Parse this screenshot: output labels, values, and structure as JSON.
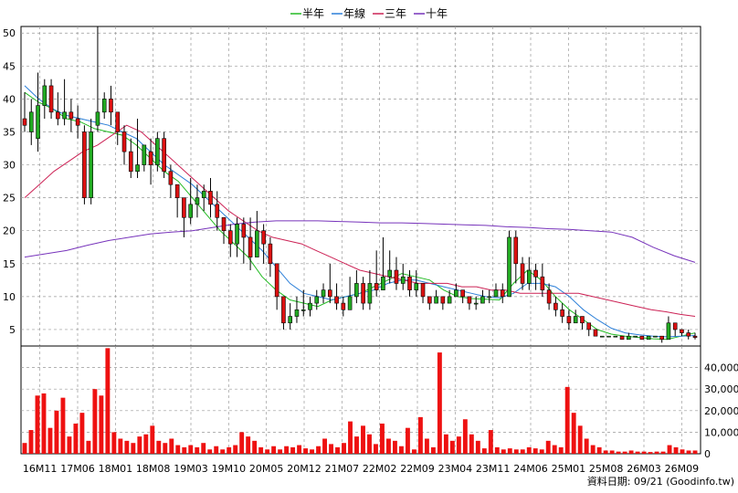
{
  "legend": {
    "items": [
      {
        "label": "半年",
        "color": "#22bb22"
      },
      {
        "label": "年線",
        "color": "#2b7fd8"
      },
      {
        "label": "三年",
        "color": "#cc2255"
      },
      {
        "label": "十年",
        "color": "#7733bb"
      }
    ]
  },
  "footer": {
    "text": "資料日期: 09/21  (Goodinfo.tw)"
  },
  "colors": {
    "up": "#22aa22",
    "down": "#dd1111",
    "volume": "#ee1111",
    "grid": "#999999"
  },
  "chart_data": [
    {
      "type": "candlestick",
      "title": "",
      "x_tick_labels": [
        "16M11",
        "17M06",
        "18M01",
        "18M08",
        "19M03",
        "19M10",
        "20M05",
        "20M12",
        "21M07",
        "22M02",
        "22M09",
        "23M04",
        "23M11",
        "24M06",
        "25M01",
        "25M08",
        "26M03",
        "26M09"
      ],
      "ylim": [
        2.5,
        51
      ],
      "y_ticks": [
        5,
        10,
        15,
        20,
        25,
        30,
        35,
        40,
        45,
        50
      ],
      "grid": true,
      "legend_position": "top-center",
      "series": [
        {
          "name": "半年",
          "values": [
            41,
            39.5,
            38.5,
            37,
            36.5,
            35.5,
            35,
            34.5,
            33,
            31,
            29,
            27.5,
            25,
            22.5,
            20,
            18,
            16,
            13,
            11,
            9.5,
            9,
            8.5,
            9.5,
            10,
            10.5,
            11.5,
            12.5,
            13.5,
            13,
            12.5,
            11,
            10,
            9.7,
            9.6,
            9.5,
            12,
            14,
            12.5,
            10,
            8,
            6.5,
            5,
            4.3,
            4,
            3.8,
            3.6,
            3.5,
            4,
            4.5
          ]
        },
        {
          "name": "年線",
          "values": [
            42,
            40,
            38.5,
            37.5,
            37,
            36.5,
            36,
            35,
            34,
            32,
            30,
            28.5,
            27,
            25,
            23,
            21,
            19,
            17,
            14.5,
            12,
            10.5,
            10,
            9.5,
            10,
            10.5,
            11,
            12,
            12.5,
            12.5,
            12,
            11.5,
            11,
            10.5,
            10,
            9.8,
            10.5,
            12,
            12,
            11.5,
            10,
            8,
            6.5,
            5.2,
            4.5,
            4.2,
            4,
            3.9,
            4,
            4.1
          ]
        },
        {
          "name": "三年",
          "values": [
            25,
            27,
            29,
            30.5,
            32,
            33,
            34.5,
            36,
            35,
            33,
            31,
            29,
            27,
            25,
            23,
            21.5,
            20,
            19,
            18.5,
            18,
            17,
            16,
            15,
            14,
            13.5,
            13,
            12.5,
            12,
            12,
            12,
            11.5,
            11.5,
            11,
            11,
            10.5,
            10.5,
            10.5,
            10.5,
            10.5,
            10,
            9.5,
            9,
            8.5,
            8,
            7.7,
            7.3,
            7
          ]
        },
        {
          "name": "十年",
          "values": [
            16,
            16.5,
            17,
            17.8,
            18.5,
            19,
            19.5,
            19.8,
            20,
            20.5,
            21,
            21.3,
            21.5,
            21.5,
            21.5,
            21.4,
            21.3,
            21.2,
            21.2,
            21.1,
            21,
            20.9,
            20.8,
            20.6,
            20.5,
            20.3,
            20.2,
            20,
            19.8,
            19,
            17.5,
            16.2,
            15.2
          ]
        }
      ],
      "candles": [
        [
          37,
          36,
          41,
          35
        ],
        [
          35,
          38,
          40,
          33
        ],
        [
          34,
          39,
          44,
          32
        ],
        [
          39,
          42,
          43,
          37
        ],
        [
          42,
          38,
          43,
          37
        ],
        [
          38,
          37,
          41,
          36
        ],
        [
          37,
          38,
          43,
          36
        ],
        [
          38,
          37,
          40,
          35
        ],
        [
          37,
          36,
          39,
          34
        ],
        [
          35,
          25,
          36,
          24
        ],
        [
          25,
          35,
          37,
          24
        ],
        [
          36,
          38,
          51,
          35
        ],
        [
          38,
          40,
          41,
          37
        ],
        [
          40,
          38,
          42,
          36
        ],
        [
          38,
          35,
          38,
          33
        ],
        [
          35,
          32,
          36,
          30
        ],
        [
          32,
          29,
          34,
          28
        ],
        [
          29,
          30,
          37,
          28
        ],
        [
          30,
          33,
          32,
          29
        ],
        [
          32,
          30,
          34,
          27
        ],
        [
          30,
          34,
          35,
          29
        ],
        [
          34,
          29,
          35,
          28
        ],
        [
          29,
          27,
          30,
          25
        ],
        [
          27,
          25,
          27,
          22
        ],
        [
          25,
          22,
          23,
          19
        ],
        [
          22,
          24,
          28,
          21
        ],
        [
          24,
          25,
          27,
          22
        ],
        [
          25,
          26,
          27,
          23
        ],
        [
          26,
          24,
          28,
          22
        ],
        [
          24,
          22,
          26,
          20
        ],
        [
          22,
          20,
          22,
          18
        ],
        [
          20,
          18,
          21,
          16
        ],
        [
          18,
          21,
          22,
          16
        ],
        [
          21,
          19,
          22,
          15
        ],
        [
          19,
          16,
          22,
          14
        ],
        [
          16,
          20,
          23,
          17
        ],
        [
          20,
          18,
          21,
          15
        ],
        [
          18,
          15,
          19,
          13
        ],
        [
          15,
          10,
          14,
          8
        ],
        [
          10,
          6,
          10,
          5
        ],
        [
          6,
          7,
          9,
          5
        ],
        [
          7,
          8,
          10,
          6
        ],
        [
          8,
          8,
          11,
          7
        ],
        [
          8,
          9,
          10,
          7
        ],
        [
          9,
          10,
          11,
          8
        ],
        [
          10,
          11,
          12,
          9
        ],
        [
          11,
          10,
          15,
          9
        ],
        [
          10,
          9,
          12,
          8
        ],
        [
          9,
          8,
          10,
          7
        ],
        [
          8,
          10,
          13,
          8
        ],
        [
          10,
          12,
          14,
          9
        ],
        [
          12,
          9,
          13,
          8
        ],
        [
          9,
          12,
          14,
          8
        ],
        [
          12,
          11,
          17,
          10
        ],
        [
          11,
          13,
          19,
          11
        ],
        [
          13,
          14,
          17,
          12
        ],
        [
          14,
          12,
          16,
          11
        ],
        [
          12,
          13,
          15,
          11
        ],
        [
          13,
          11,
          14,
          10
        ],
        [
          11,
          12,
          14,
          10
        ],
        [
          12,
          10,
          12,
          9
        ],
        [
          10,
          9,
          10,
          8
        ],
        [
          9,
          10,
          11,
          9
        ],
        [
          10,
          9,
          10,
          8
        ],
        [
          9,
          10,
          11,
          9
        ],
        [
          10,
          11,
          12,
          10
        ],
        [
          11,
          10,
          11,
          9
        ],
        [
          10,
          9,
          10,
          8
        ],
        [
          9,
          9,
          10,
          8
        ],
        [
          9,
          10,
          11,
          9
        ],
        [
          10,
          10,
          11,
          9
        ],
        [
          10,
          11,
          12,
          10
        ],
        [
          11,
          10,
          12,
          9
        ],
        [
          10,
          19,
          20,
          10
        ],
        [
          19,
          15,
          20,
          12
        ],
        [
          15,
          12,
          16,
          11
        ],
        [
          12,
          14,
          16,
          11
        ],
        [
          14,
          13,
          15,
          11
        ],
        [
          13,
          11,
          15,
          10
        ],
        [
          11,
          9,
          12,
          8
        ],
        [
          9,
          8,
          10,
          7
        ],
        [
          8,
          7,
          9,
          6
        ],
        [
          7,
          6,
          8,
          5
        ],
        [
          6,
          7,
          8,
          6
        ],
        [
          7,
          6,
          7,
          5
        ],
        [
          6,
          5,
          6,
          4
        ],
        [
          5,
          4,
          5,
          4
        ],
        [
          4,
          4,
          4,
          4
        ],
        [
          4,
          4,
          4,
          4
        ],
        [
          4,
          4,
          4,
          4
        ],
        [
          4,
          3.5,
          4,
          3.5
        ],
        [
          3.5,
          4,
          4.5,
          3.5
        ],
        [
          4,
          4,
          4,
          4
        ],
        [
          4,
          3.5,
          4,
          3.5
        ],
        [
          3.5,
          4,
          4,
          3.5
        ],
        [
          4,
          4,
          4,
          4
        ],
        [
          4,
          3.5,
          4,
          3
        ],
        [
          3.5,
          6,
          7,
          3.5
        ],
        [
          6,
          5,
          6,
          4
        ],
        [
          5,
          4.5,
          5,
          4
        ],
        [
          4.5,
          4,
          5,
          3.5
        ],
        [
          4,
          3.8,
          4.5,
          3.5
        ]
      ]
    },
    {
      "type": "bar",
      "title": "",
      "ylim": [
        0,
        50000
      ],
      "y_ticks": [
        0,
        10000,
        20000,
        30000,
        40000
      ],
      "y_tick_labels": [
        "0",
        "10,000",
        "20,000",
        "30,000",
        "40,000"
      ],
      "grid": true,
      "values": [
        5000,
        11000,
        27000,
        28000,
        12000,
        20000,
        26000,
        8000,
        14000,
        19000,
        6000,
        30000,
        27000,
        49000,
        10000,
        7000,
        6000,
        5000,
        8000,
        9000,
        13000,
        6000,
        5000,
        7000,
        4000,
        3000,
        4000,
        3000,
        5000,
        2000,
        3500,
        2000,
        3000,
        4000,
        10000,
        8000,
        6000,
        3000,
        2000,
        3500,
        2000,
        3500,
        3000,
        4000,
        2500,
        2000,
        3500,
        7000,
        4500,
        3000,
        5000,
        15000,
        8000,
        13000,
        9000,
        4500,
        14000,
        7000,
        6000,
        3500,
        12000,
        2000,
        17000,
        7000,
        3000,
        47000,
        9000,
        6000,
        8000,
        16000,
        9000,
        6000,
        2500,
        11000,
        3000,
        2000,
        2500,
        2000,
        2000,
        3000,
        2500,
        2000,
        6000,
        4000,
        3000,
        31000,
        19000,
        13000,
        7000,
        4000,
        3000,
        1500,
        1500,
        1000,
        1000,
        1500,
        1000,
        1000,
        800,
        1000,
        1000,
        4000,
        3000,
        2000,
        1500,
        1500
      ]
    }
  ]
}
